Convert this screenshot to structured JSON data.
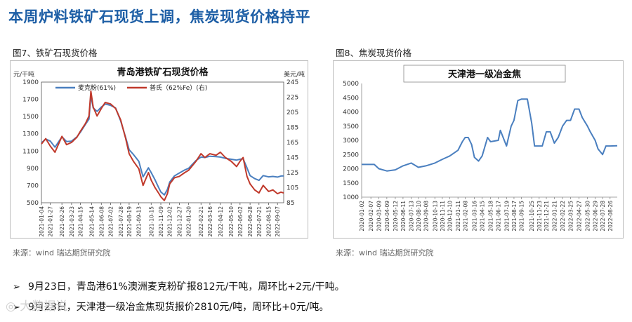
{
  "slide": {
    "title": "本周炉料铁矿石现货上调，焦炭现货价格持平",
    "fig_left_label": "图7、铁矿石现货价格",
    "fig_right_label": "图8、焦炭现货价格",
    "source_left": "来源：wind   瑞达期货研究院",
    "source_right": "来源：wind   瑞达期货研究院",
    "bullets": [
      "9月23日，青岛港61%澳洲麦克粉矿报812元/干吨，周环比+2元/干吨。",
      "9月23日，天津港一级冶金焦现货报价2810元/吨，周环比+0元/吨。"
    ],
    "bullet_glyph": "➢",
    "watermark_text": "◎ 大数据说"
  },
  "chart_data": [
    {
      "type": "line",
      "title": "青岛港铁矿石现货价格",
      "ylabel_left": "元/干吨",
      "ylabel_right": "美元/吨",
      "ylim_left": [
        500,
        1900
      ],
      "yticks_left": [
        500,
        700,
        900,
        1100,
        1300,
        1500,
        1700,
        1900
      ],
      "ylim_right": [
        85,
        245
      ],
      "yticks_right": [
        85,
        105,
        125,
        145,
        165,
        185,
        205,
        225,
        245
      ],
      "x_range": [
        "2021-01-04",
        "2022-09-23"
      ],
      "x_tick_labels": [
        "2021-01-04",
        "2021-01-27",
        "2021-02-26",
        "2021-03-23",
        "2021-04-15",
        "2021-05-14",
        "2021-06-08",
        "2021-07-02",
        "2021-07-28",
        "2021-08-19",
        "2021-09-13",
        "2021-10-15",
        "2021-11-09",
        "2021-12-02",
        "2021-12-27",
        "2022-01-20",
        "2022-02-21",
        "2022-03-16",
        "2022-04-12",
        "2022-05-10",
        "2022-06-02",
        "2022-06-28",
        "2022-07-21",
        "2022-08-15",
        "2022-09-07"
      ],
      "legend": [
        "麦克粉(61%)",
        "普氏（62%Fe）(右)"
      ],
      "series": [
        {
          "name": "麦克粉(61%)",
          "color": "#4a7fbf",
          "axis": "left",
          "points": [
            [
              "2021-01-04",
              1195
            ],
            [
              "2021-01-15",
              1240
            ],
            [
              "2021-01-27",
              1215
            ],
            [
              "2021-02-08",
              1145
            ],
            [
              "2021-02-26",
              1265
            ],
            [
              "2021-03-10",
              1210
            ],
            [
              "2021-03-23",
              1215
            ],
            [
              "2021-04-06",
              1265
            ],
            [
              "2021-04-15",
              1320
            ],
            [
              "2021-04-28",
              1410
            ],
            [
              "2021-05-07",
              1470
            ],
            [
              "2021-05-12",
              1745
            ],
            [
              "2021-05-18",
              1600
            ],
            [
              "2021-05-28",
              1560
            ],
            [
              "2021-06-08",
              1610
            ],
            [
              "2021-06-18",
              1645
            ],
            [
              "2021-07-02",
              1630
            ],
            [
              "2021-07-15",
              1600
            ],
            [
              "2021-07-28",
              1450
            ],
            [
              "2021-08-10",
              1255
            ],
            [
              "2021-08-19",
              1115
            ],
            [
              "2021-08-30",
              1060
            ],
            [
              "2021-09-13",
              980
            ],
            [
              "2021-09-24",
              800
            ],
            [
              "2021-10-08",
              905
            ],
            [
              "2021-10-15",
              850
            ],
            [
              "2021-10-25",
              765
            ],
            [
              "2021-11-03",
              680
            ],
            [
              "2021-11-09",
              625
            ],
            [
              "2021-11-18",
              590
            ],
            [
              "2021-11-26",
              655
            ],
            [
              "2021-12-02",
              740
            ],
            [
              "2021-12-14",
              810
            ],
            [
              "2021-12-27",
              845
            ],
            [
              "2022-01-10",
              880
            ],
            [
              "2022-01-20",
              900
            ],
            [
              "2022-02-08",
              990
            ],
            [
              "2022-02-21",
              1030
            ],
            [
              "2022-03-03",
              1025
            ],
            [
              "2022-03-16",
              1040
            ],
            [
              "2022-04-01",
              1035
            ],
            [
              "2022-04-12",
              1030
            ],
            [
              "2022-04-25",
              1015
            ],
            [
              "2022-05-10",
              1005
            ],
            [
              "2022-05-24",
              995
            ],
            [
              "2022-06-02",
              1005
            ],
            [
              "2022-06-10",
              1010
            ],
            [
              "2022-06-20",
              905
            ],
            [
              "2022-06-28",
              815
            ],
            [
              "2022-07-10",
              780
            ],
            [
              "2022-07-21",
              760
            ],
            [
              "2022-08-01",
              815
            ],
            [
              "2022-08-15",
              800
            ],
            [
              "2022-08-26",
              805
            ],
            [
              "2022-09-07",
              798
            ],
            [
              "2022-09-16",
              810
            ],
            [
              "2022-09-23",
              812
            ]
          ]
        },
        {
          "name": "普氏（62%Fe）(右)",
          "color": "#c0392b",
          "axis": "right",
          "points": [
            [
              "2021-01-04",
              163
            ],
            [
              "2021-01-15",
              170
            ],
            [
              "2021-01-27",
              160
            ],
            [
              "2021-02-08",
              152
            ],
            [
              "2021-02-26",
              173
            ],
            [
              "2021-03-10",
              162
            ],
            [
              "2021-03-23",
              165
            ],
            [
              "2021-04-06",
              172
            ],
            [
              "2021-04-15",
              180
            ],
            [
              "2021-04-28",
              190
            ],
            [
              "2021-05-07",
              200
            ],
            [
              "2021-05-12",
              233
            ],
            [
              "2021-05-18",
              212
            ],
            [
              "2021-05-28",
              200
            ],
            [
              "2021-06-08",
              210
            ],
            [
              "2021-06-18",
              218
            ],
            [
              "2021-07-02",
              216
            ],
            [
              "2021-07-15",
              210
            ],
            [
              "2021-07-28",
              195
            ],
            [
              "2021-08-10",
              170
            ],
            [
              "2021-08-19",
              150
            ],
            [
              "2021-08-30",
              140
            ],
            [
              "2021-09-13",
              130
            ],
            [
              "2021-09-24",
              108
            ],
            [
              "2021-10-08",
              125
            ],
            [
              "2021-10-15",
              115
            ],
            [
              "2021-10-25",
              105
            ],
            [
              "2021-11-03",
              98
            ],
            [
              "2021-11-09",
              93
            ],
            [
              "2021-11-18",
              88
            ],
            [
              "2021-11-26",
              97
            ],
            [
              "2021-12-02",
              110
            ],
            [
              "2021-12-14",
              118
            ],
            [
              "2021-12-27",
              120
            ],
            [
              "2022-01-10",
              125
            ],
            [
              "2022-01-20",
              128
            ],
            [
              "2022-02-08",
              140
            ],
            [
              "2022-02-21",
              150
            ],
            [
              "2022-03-03",
              145
            ],
            [
              "2022-03-16",
              150
            ],
            [
              "2022-04-01",
              148
            ],
            [
              "2022-04-12",
              152
            ],
            [
              "2022-04-25",
              145
            ],
            [
              "2022-05-10",
              140
            ],
            [
              "2022-05-24",
              133
            ],
            [
              "2022-06-02",
              140
            ],
            [
              "2022-06-10",
              145
            ],
            [
              "2022-06-20",
              120
            ],
            [
              "2022-06-28",
              110
            ],
            [
              "2022-07-10",
              102
            ],
            [
              "2022-07-21",
              98
            ],
            [
              "2022-08-01",
              108
            ],
            [
              "2022-08-15",
              100
            ],
            [
              "2022-08-26",
              102
            ],
            [
              "2022-09-07",
              97
            ],
            [
              "2022-09-16",
              99
            ],
            [
              "2022-09-23",
              98
            ]
          ]
        }
      ]
    },
    {
      "type": "line",
      "title": "天津港一级冶金焦",
      "ylim": [
        1000,
        5000
      ],
      "yticks": [
        1000,
        1500,
        2000,
        2500,
        3000,
        3500,
        4000,
        4500,
        5000
      ],
      "x_range": [
        "2020-01-02",
        "2022-09-23"
      ],
      "x_tick_labels": [
        "2020-01-02",
        "2020-02-07",
        "2020-03-09",
        "2020-04-09",
        "2020-05-12",
        "2020-06-11",
        "2020-07-13",
        "2020-08-10",
        "2020-09-08",
        "2020-10-13",
        "2020-11-11",
        "2020-12-10",
        "2021-01-11",
        "2021-02-08",
        "2021-03-16",
        "2021-04-15",
        "2021-05-18",
        "2021-06-17",
        "2021-07-19",
        "2021-08-17",
        "2021-09-15",
        "2021-10-25",
        "2021-11-23",
        "2021-12-21",
        "2022-01-21",
        "2022-02-22",
        "2022-03-25",
        "2022-04-27",
        "2022-05-30",
        "2022-06-29",
        "2022-07-28",
        "2022-08-26"
      ],
      "series": [
        {
          "name": "天津港一级冶金焦",
          "color": "#4a7fbf",
          "points": [
            [
              "2020-01-02",
              2150
            ],
            [
              "2020-02-07",
              2150
            ],
            [
              "2020-02-20",
              2150
            ],
            [
              "2020-03-09",
              2000
            ],
            [
              "2020-04-09",
              1920
            ],
            [
              "2020-05-12",
              1960
            ],
            [
              "2020-06-11",
              2100
            ],
            [
              "2020-07-13",
              2200
            ],
            [
              "2020-08-10",
              2050
            ],
            [
              "2020-09-08",
              2100
            ],
            [
              "2020-10-13",
              2200
            ],
            [
              "2020-11-11",
              2330
            ],
            [
              "2020-12-10",
              2450
            ],
            [
              "2021-01-11",
              2650
            ],
            [
              "2021-01-28",
              2950
            ],
            [
              "2021-02-08",
              3100
            ],
            [
              "2021-02-20",
              3100
            ],
            [
              "2021-03-05",
              2850
            ],
            [
              "2021-03-16",
              2400
            ],
            [
              "2021-04-01",
              2270
            ],
            [
              "2021-04-15",
              2450
            ],
            [
              "2021-05-06",
              3100
            ],
            [
              "2021-05-18",
              2950
            ],
            [
              "2021-06-17",
              3000
            ],
            [
              "2021-06-25",
              3350
            ],
            [
              "2021-07-19",
              2800
            ],
            [
              "2021-08-06",
              3500
            ],
            [
              "2021-08-17",
              3700
            ],
            [
              "2021-09-01",
              4400
            ],
            [
              "2021-09-15",
              4450
            ],
            [
              "2021-10-08",
              4450
            ],
            [
              "2021-10-25",
              3600
            ],
            [
              "2021-11-05",
              2800
            ],
            [
              "2021-11-23",
              2800
            ],
            [
              "2021-12-05",
              2800
            ],
            [
              "2021-12-21",
              3300
            ],
            [
              "2022-01-05",
              3300
            ],
            [
              "2022-01-21",
              2900
            ],
            [
              "2022-02-05",
              3100
            ],
            [
              "2022-02-22",
              3500
            ],
            [
              "2022-03-10",
              3700
            ],
            [
              "2022-03-25",
              3700
            ],
            [
              "2022-04-10",
              4100
            ],
            [
              "2022-04-27",
              4100
            ],
            [
              "2022-05-10",
              3800
            ],
            [
              "2022-05-30",
              3500
            ],
            [
              "2022-06-10",
              3300
            ],
            [
              "2022-06-29",
              3000
            ],
            [
              "2022-07-10",
              2700
            ],
            [
              "2022-07-28",
              2500
            ],
            [
              "2022-08-10",
              2800
            ],
            [
              "2022-08-26",
              2800
            ],
            [
              "2022-09-23",
              2810
            ]
          ]
        }
      ]
    }
  ]
}
